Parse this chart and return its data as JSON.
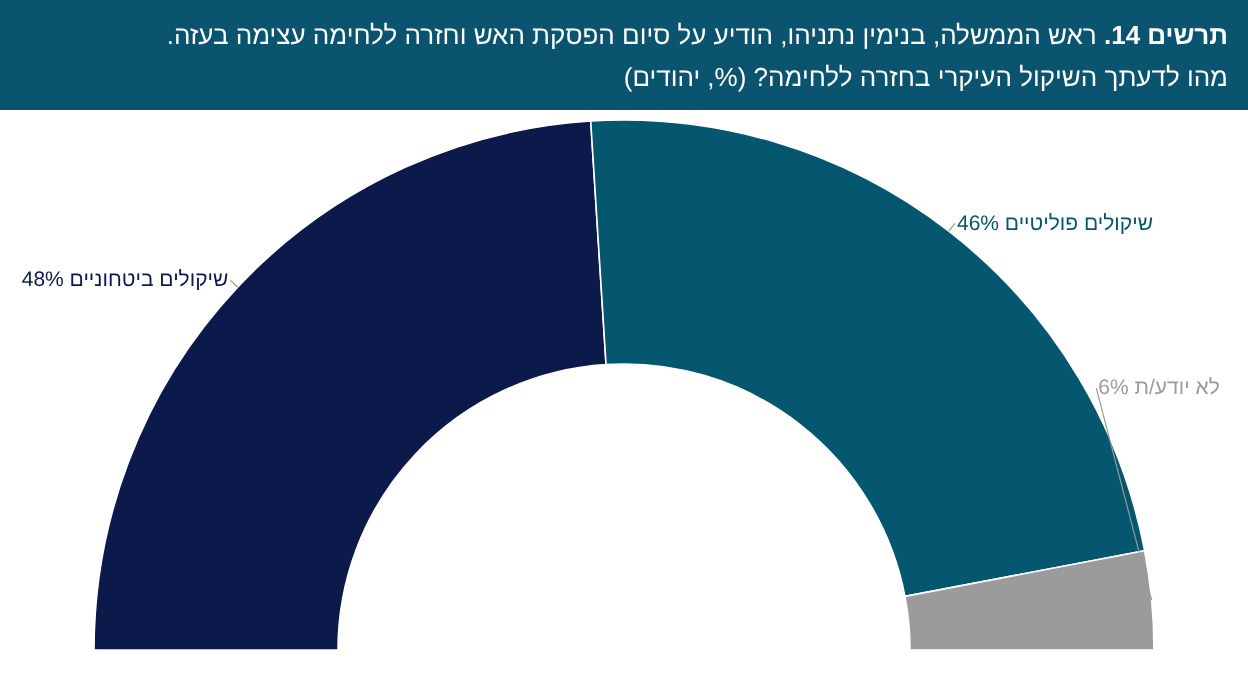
{
  "chart_data": {
    "type": "donut",
    "title": "**תרשים 14.** ראש הממשלה, בנימין נתניהו, הודיע על סיום הפסקת האש וחזרה ללחימה עצימה בעזה.",
    "subtitle": "מהו לדעתך השיקול העיקרי בחזרה ללחימה? (%, יהודים)",
    "categories": [
      "שיקולים ביטחוניים",
      "שיקולים פוליטיים",
      "לא יודע/ת"
    ],
    "values": [
      48,
      46,
      6
    ],
    "value_labels": [
      "48%",
      "46%",
      "6%"
    ],
    "colors": [
      "#0b1a4b",
      "#05566f",
      "#9b9b9b"
    ]
  }
}
